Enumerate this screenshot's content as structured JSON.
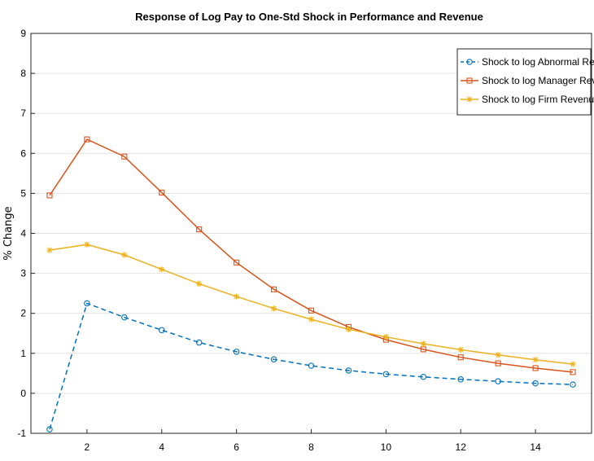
{
  "chart_data": {
    "type": "line",
    "title": "Response of Log Pay to One-Std Shock in Performance and Revenue",
    "xlabel": "",
    "ylabel": "% Change",
    "xlim": [
      0.5,
      15.5
    ],
    "ylim": [
      -1,
      9
    ],
    "xticks": [
      2,
      4,
      6,
      8,
      10,
      12,
      14
    ],
    "yticks": [
      -1,
      0,
      1,
      2,
      3,
      4,
      5,
      6,
      7,
      8,
      9
    ],
    "grid": "horizontal",
    "legend_position": "top-right",
    "x": [
      1,
      2,
      3,
      4,
      5,
      6,
      7,
      8,
      9,
      10,
      11,
      12,
      13,
      14,
      15
    ],
    "series": [
      {
        "name": "Shock to log Abnormal Return",
        "color": "#0072BD",
        "line_style": "dashed",
        "marker": "circle",
        "values": [
          -0.9,
          2.25,
          1.9,
          1.58,
          1.27,
          1.04,
          0.85,
          0.69,
          0.57,
          0.48,
          0.41,
          0.35,
          0.3,
          0.25,
          0.22
        ]
      },
      {
        "name": "Shock to log Manager Revenue",
        "color": "#D95319",
        "line_style": "solid",
        "marker": "square",
        "values": [
          4.95,
          6.35,
          5.92,
          5.02,
          4.1,
          3.27,
          2.6,
          2.07,
          1.66,
          1.34,
          1.1,
          0.9,
          0.75,
          0.63,
          0.53
        ]
      },
      {
        "name": "Shock to log Firm Revenue",
        "color": "#EDB120",
        "line_style": "solid",
        "marker": "star",
        "values": [
          3.58,
          3.72,
          3.46,
          3.1,
          2.74,
          2.42,
          2.12,
          1.85,
          1.6,
          1.41,
          1.24,
          1.09,
          0.96,
          0.84,
          0.73
        ]
      }
    ]
  }
}
